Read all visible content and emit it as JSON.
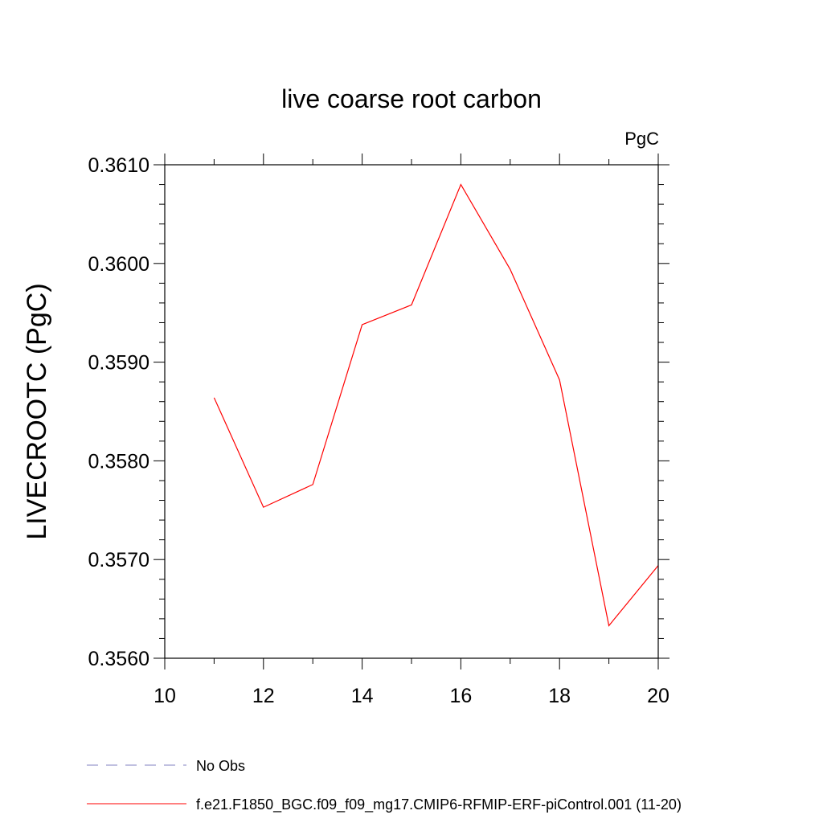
{
  "chart_data": {
    "type": "line",
    "title": "live coarse root carbon",
    "units_label": "PgC",
    "xlabel": "",
    "ylabel": "LIVECROOTC  (PgC)",
    "xlim": [
      10,
      20
    ],
    "ylim": [
      0.356,
      0.361
    ],
    "x_ticks": [
      10,
      12,
      14,
      16,
      18,
      20
    ],
    "y_ticks": [
      0.356,
      0.357,
      0.358,
      0.359,
      0.36,
      0.361
    ],
    "x_tick_labels": [
      "10",
      "12",
      "14",
      "16",
      "18",
      "20"
    ],
    "y_tick_labels": [
      "0.3560",
      "0.3570",
      "0.3580",
      "0.3590",
      "0.3600",
      "0.3610"
    ],
    "x_minor_step": 1,
    "y_minor_step": 0.0002,
    "grid": false,
    "legend_position": "bottom-left",
    "series": [
      {
        "name": "f.e21.F1850_BGC.f09_f09_mg17.CMIP6-RFMIP-ERF-piControl.001 (11-20)",
        "color": "#ff0000",
        "style": "solid",
        "x": [
          11,
          12,
          13,
          14,
          15,
          16,
          17,
          18,
          19,
          20
        ],
        "values": [
          0.35864,
          0.35753,
          0.35776,
          0.35938,
          0.35958,
          0.3608,
          0.35994,
          0.35882,
          0.35633,
          0.35694
        ]
      }
    ],
    "legend": [
      {
        "label": "No Obs",
        "color": "#8080c0",
        "style": "dashed"
      },
      {
        "label": "f.e21.F1850_BGC.f09_f09_mg17.CMIP6-RFMIP-ERF-piControl.001 (11-20)",
        "color": "#ff0000",
        "style": "solid"
      }
    ]
  }
}
